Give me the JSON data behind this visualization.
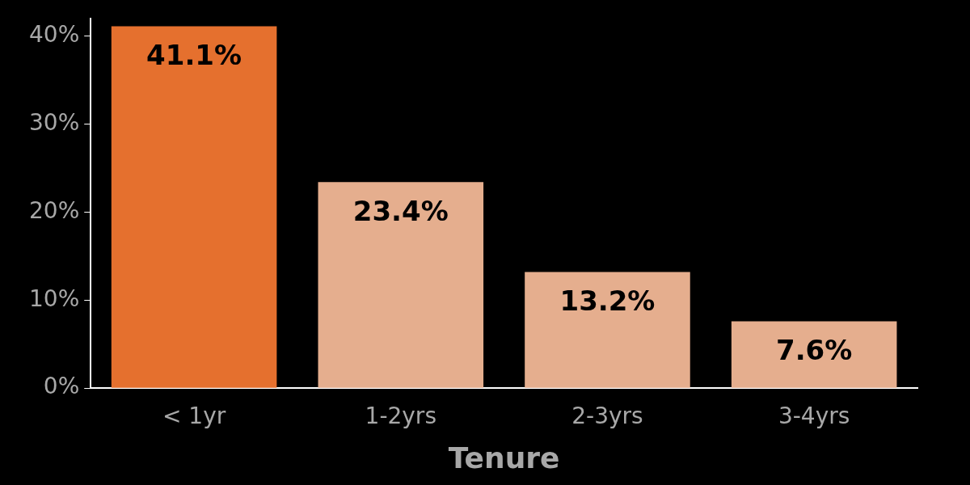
{
  "chart_data": {
    "type": "bar",
    "xlabel": "Tenure",
    "categories": [
      "< 1yr",
      "1-2yrs",
      "2-3yrs",
      "3-4yrs"
    ],
    "values": [
      41.1,
      23.4,
      13.2,
      7.6
    ],
    "colors": [
      "#e5702e",
      "#e5ae8e",
      "#e5ae8e",
      "#e5ae8e"
    ],
    "value_labels": [
      "41.1%",
      "23.4%",
      "13.2%",
      "7.6%"
    ],
    "ylim": [
      0,
      42
    ],
    "yticks": [
      {
        "value": 0,
        "label": "0%"
      },
      {
        "value": 10,
        "label": "10%"
      },
      {
        "value": 20,
        "label": "20%"
      },
      {
        "value": 30,
        "label": "30%"
      },
      {
        "value": 40,
        "label": "40%"
      }
    ],
    "grid": false,
    "legend": false
  }
}
